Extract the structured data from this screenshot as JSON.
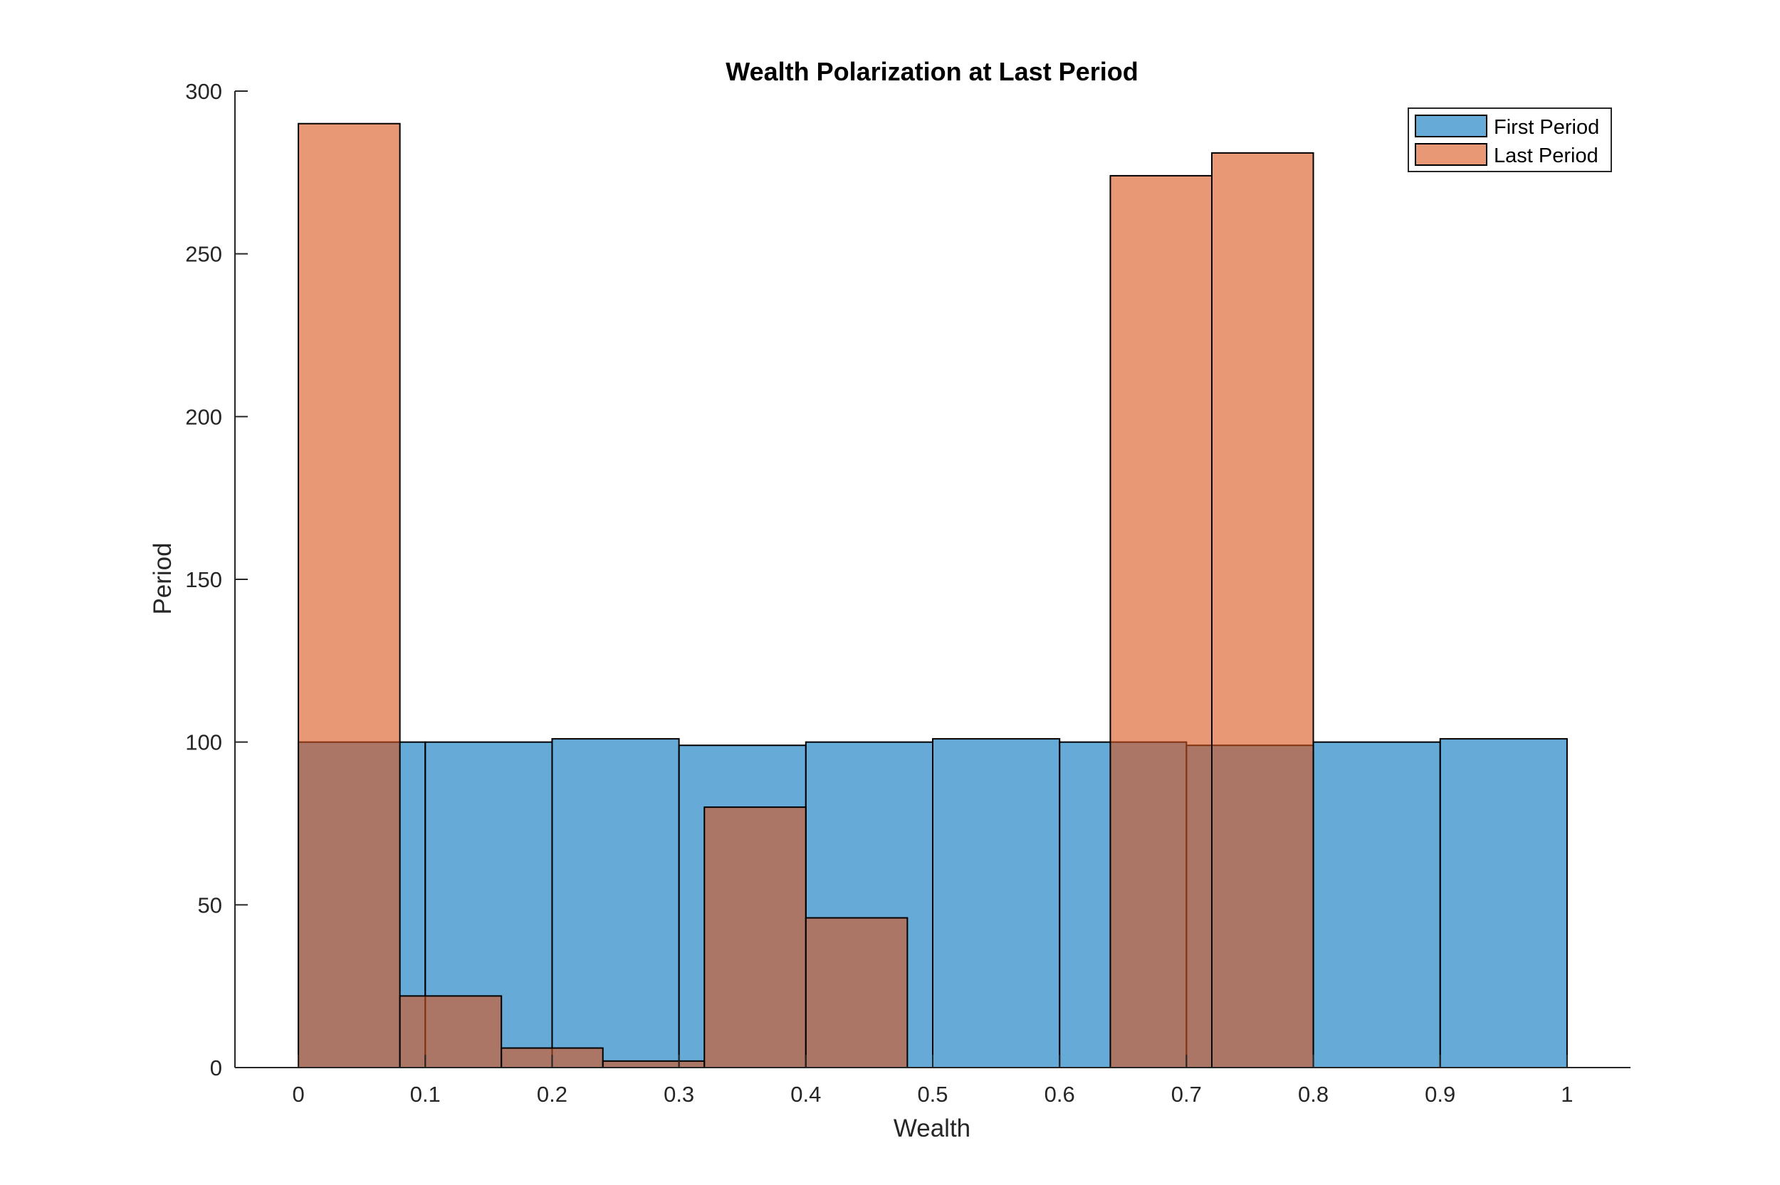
{
  "chart_data": {
    "type": "bar",
    "title": "Wealth Polarization at Last Period",
    "xlabel": "Wealth",
    "ylabel": "Period",
    "xlim": [
      -0.05,
      1.05
    ],
    "ylim": [
      0,
      300
    ],
    "xticks": [
      0,
      0.1,
      0.2,
      0.3,
      0.4,
      0.5,
      0.6,
      0.7,
      0.8,
      0.9,
      1
    ],
    "xtick_labels": [
      "0",
      "0.1",
      "0.2",
      "0.3",
      "0.4",
      "0.5",
      "0.6",
      "0.7",
      "0.8",
      "0.9",
      "1"
    ],
    "yticks": [
      0,
      50,
      100,
      150,
      200,
      250,
      300
    ],
    "ytick_labels": [
      "0",
      "50",
      "100",
      "150",
      "200",
      "250",
      "300"
    ],
    "grid": false,
    "legend_position": "top-right",
    "series": [
      {
        "name": "First Period",
        "color": "#0072BD",
        "bin_edges": [
          0,
          0.1,
          0.2,
          0.3,
          0.4,
          0.5,
          0.6,
          0.7,
          0.8,
          0.9,
          1
        ],
        "counts": [
          100,
          100,
          101,
          99,
          100,
          101,
          100,
          99,
          100,
          101
        ]
      },
      {
        "name": "Last Period",
        "color": "#D95319",
        "bin_edges": [
          0,
          0.08,
          0.16,
          0.24,
          0.32,
          0.4,
          0.48,
          0.56,
          0.64,
          0.72,
          0.8
        ],
        "counts": [
          290,
          22,
          6,
          2,
          80,
          46,
          0,
          0,
          274,
          281
        ]
      }
    ]
  }
}
